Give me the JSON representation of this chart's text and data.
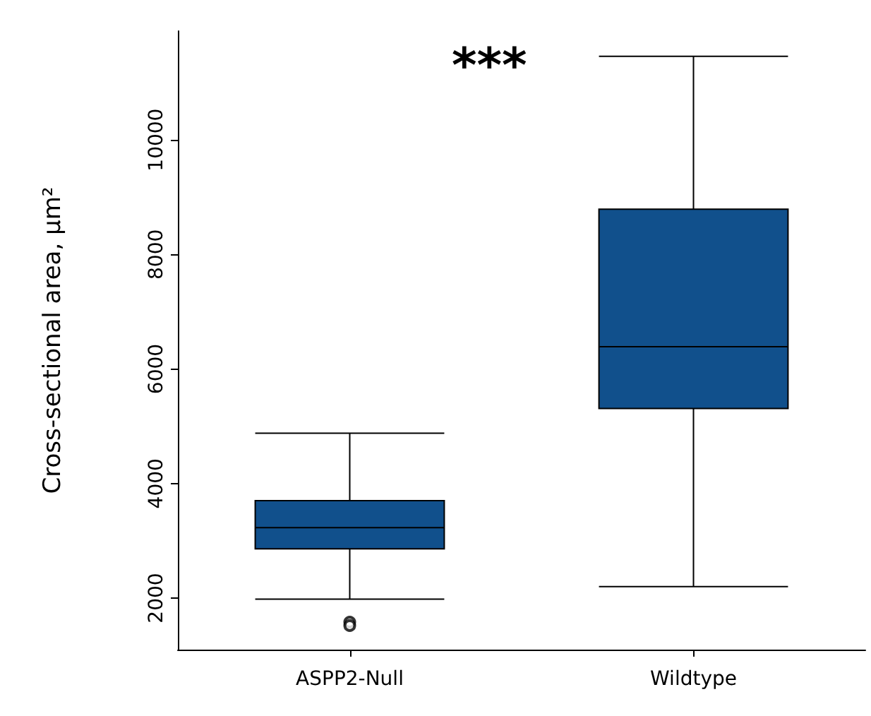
{
  "chart_data": {
    "type": "box",
    "ylabel": "Cross-sectional area, µm²",
    "categories": [
      "ASPP2-Null",
      "Wildtype"
    ],
    "series": [
      {
        "color": "#11508c",
        "boxes": [
          {
            "low": 1980,
            "q1": 2860,
            "median": 3230,
            "q3": 3700,
            "high": 4880,
            "outliers": [
              1580,
              1520
            ]
          },
          {
            "low": 2200,
            "q1": 5310,
            "median": 6390,
            "q3": 8790,
            "high": 11460
          }
        ]
      }
    ],
    "ylim": [
      1100,
      11900
    ],
    "yticks": [
      2000,
      4000,
      6000,
      8000,
      10000
    ],
    "grid": false,
    "annotations": [
      "***"
    ]
  }
}
